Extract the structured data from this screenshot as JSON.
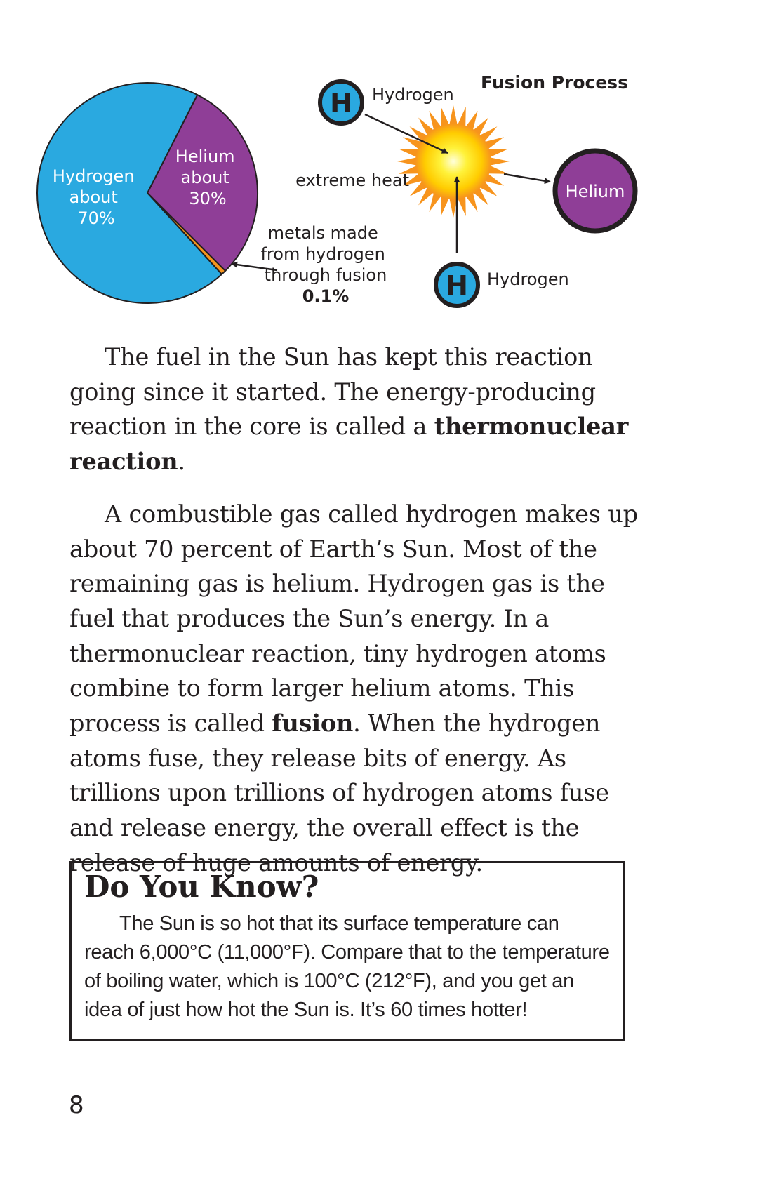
{
  "chart_data": {
    "type": "pie",
    "slices": [
      {
        "label_lines": [
          "Hydrogen",
          "about",
          "70%"
        ],
        "value": 69.9,
        "color": "#2aa9e0"
      },
      {
        "label_lines": [
          "Helium",
          "about",
          "30%"
        ],
        "value": 30.0,
        "color": "#8f3e97"
      },
      {
        "label_lines": [
          "metals made",
          "from hydrogen",
          "through fusion"
        ],
        "value_text": "0.1%",
        "value": 0.1,
        "color": "#f7941d"
      }
    ]
  },
  "diagram": {
    "title": "Fusion Process",
    "atom_symbol": "H",
    "hydrogen_top_label": "Hydrogen",
    "hydrogen_bottom_label": "Hydrogen",
    "heat_label": "extreme heat",
    "helium_label": "Helium"
  },
  "paragraph1": {
    "text_before": "The fuel in the Sun has kept this reaction going since it started. The energy-producing reaction in the core is called a ",
    "bold": "thermonuclear reaction",
    "text_after": "."
  },
  "paragraph2": {
    "text_before": "A combustible gas called hydrogen makes up about 70 percent of Earth’s Sun. Most of the remaining gas is helium. Hydrogen gas is the fuel that produces the Sun’s energy. In a thermonuclear reaction, tiny hydrogen atoms combine to form larger helium atoms. This process is called ",
    "bold": "fusion",
    "text_after": ". When the hydrogen atoms fuse, they release bits of energy. As trillions upon trillions of hydrogen atoms fuse and release energy, the overall effect is the release of huge amounts of energy."
  },
  "sidebar": {
    "title": "Do You Know?",
    "text": "The Sun is so hot that its surface temperature can reach 6,000°C (11,000°F). Compare that to the temperature of boiling water, which is 100°C (212°F), and you get an idea of just how hot the Sun is. It’s 60 times hotter!"
  },
  "page_number": "8",
  "colors": {
    "hydrogen": "#2aa9e0",
    "helium": "#8f3e97",
    "metals": "#f7941d",
    "outline": "#231f20"
  }
}
